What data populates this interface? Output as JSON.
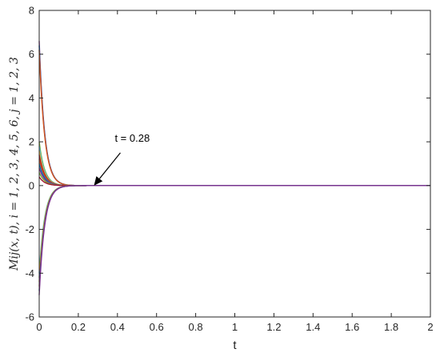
{
  "chart_data": {
    "type": "line",
    "title": "",
    "xlabel": "t",
    "ylabel": "M_ij(x,t), i = 1,2,3,4,5,6, j = 1,2,3",
    "ylabel_display": "Mij(x, t), i = 1, 2, 3, 4, 5, 6, j = 1, 2, 3",
    "xlim": [
      0,
      2
    ],
    "ylim": [
      -6,
      8
    ],
    "xticks": [
      0,
      0.2,
      0.4,
      0.6,
      0.8,
      1,
      1.2,
      1.4,
      1.6,
      1.8,
      2
    ],
    "xtick_labels": [
      "0",
      "0.2",
      "0.4",
      "0.6",
      "0.8",
      "1",
      "1.2",
      "1.4",
      "1.6",
      "1.8",
      "2"
    ],
    "yticks": [
      -6,
      -4,
      -2,
      0,
      2,
      4,
      6,
      8
    ],
    "ytick_labels": [
      "-6",
      "-4",
      "-2",
      "0",
      "2",
      "4",
      "6",
      "8"
    ],
    "grid": false,
    "box": true,
    "convergence_time": 0.28,
    "annotation": {
      "text": "t = 0.28",
      "x": 0.28,
      "y": 0
    },
    "series": [
      {
        "initial": 6.6,
        "color": "#7E2F8E"
      },
      {
        "initial": 6.4,
        "color": "#0072BD"
      },
      {
        "initial": 6.2,
        "color": "#D95319"
      },
      {
        "initial": 2.0,
        "color": "#77AC30"
      },
      {
        "initial": 1.8,
        "color": "#4DBEEE"
      },
      {
        "initial": 1.6,
        "color": "#EDB120"
      },
      {
        "initial": 1.4,
        "color": "#A2142F"
      },
      {
        "initial": 1.2,
        "color": "#D95319"
      },
      {
        "initial": 1.0,
        "color": "#0072BD"
      },
      {
        "initial": 0.8,
        "color": "#7E2F8E"
      },
      {
        "initial": 0.6,
        "color": "#77AC30"
      },
      {
        "initial": 0.4,
        "color": "#A2142F"
      },
      {
        "initial": -4.0,
        "color": "#4DBEEE"
      },
      {
        "initial": -4.2,
        "color": "#77AC30"
      },
      {
        "initial": -4.4,
        "color": "#EDB120"
      },
      {
        "initial": -4.6,
        "color": "#D95319"
      },
      {
        "initial": -4.8,
        "color": "#0072BD"
      },
      {
        "initial": -5.0,
        "color": "#7E2F8E"
      }
    ]
  }
}
